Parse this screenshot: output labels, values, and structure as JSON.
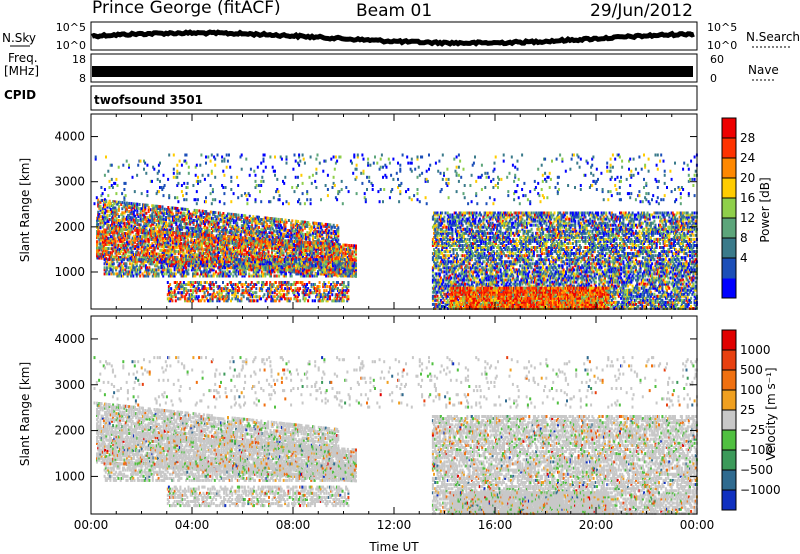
{
  "header": {
    "station": "Prince George (fitACF)",
    "beam": "Beam 01",
    "date": "29/Jun/2012"
  },
  "left_labels": {
    "nsky": "N.Sky",
    "freq_line1": "Freq.",
    "freq_line2": "[MHz]",
    "cpid": "CPID"
  },
  "right_labels": {
    "nsearch": "N.Search",
    "nave": "Nave"
  },
  "cpid_text": "twofsound 3501",
  "colors": {
    "background": "#ffffff",
    "noise_trace": "#000000"
  },
  "chart_data": [
    {
      "type": "line",
      "name": "noise",
      "left_ticks": [
        "10^5",
        "10^0"
      ],
      "right_ticks": [
        "10^5",
        "10^0"
      ],
      "xlim": [
        "00:00",
        "24:00"
      ]
    },
    {
      "type": "bar",
      "name": "freq-nave",
      "left_ticks": [
        "18",
        "8"
      ],
      "right_ticks": [
        "60",
        "0"
      ],
      "xlim": [
        "00:00",
        "24:00"
      ]
    },
    {
      "type": "heatmap",
      "name": "power",
      "ylabel": "Slant Range [km]",
      "yticks": [
        "4000",
        "3000",
        "2000",
        "1000"
      ],
      "ylim": [
        180,
        4500
      ],
      "xlim": [
        "00:00",
        "24:00"
      ],
      "colorbar_label": "Power [dB]",
      "colorbar_ticks": [
        "28",
        "24",
        "20",
        "16",
        "12",
        "8",
        "4"
      ],
      "colorbar_colors": [
        "#0000ff",
        "#1c4fb8",
        "#3a7a8a",
        "#5ca57a",
        "#8fcf4a",
        "#ffcc00",
        "#ff8800",
        "#ff3300",
        "#ee0000"
      ]
    },
    {
      "type": "heatmap",
      "name": "velocity",
      "ylabel": "Slant Range [km]",
      "yticks": [
        "4000",
        "3000",
        "2000",
        "1000"
      ],
      "ylim": [
        180,
        4500
      ],
      "xlim": [
        "00:00",
        "24:00"
      ],
      "colorbar_label": "Velocity [m s⁻¹]",
      "colorbar_ticks": [
        "1000",
        "500",
        "100",
        "25",
        "−25",
        "−100",
        "−500",
        "−1000"
      ],
      "colorbar_colors": [
        "#1030c0",
        "#2f6a8f",
        "#3c9a5a",
        "#50c040",
        "#c8c8c8",
        "#f0a020",
        "#f07010",
        "#e84010",
        "#e00000"
      ],
      "xticks": [
        "00:00",
        "04:00",
        "08:00",
        "12:00",
        "16:00",
        "20:00",
        "00:00"
      ],
      "xlabel": "Time UT"
    }
  ]
}
